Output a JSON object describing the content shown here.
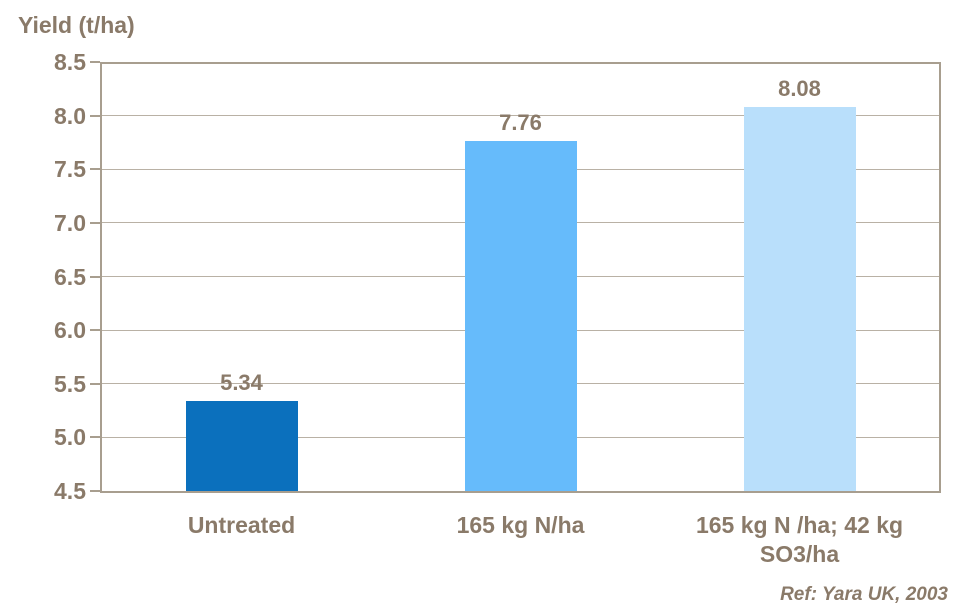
{
  "page_title": "Yield (t/ha)",
  "ref_note": "Ref: Yara UK, 2003",
  "colors": {
    "text": "#8a7a69",
    "axis_border": "#a89e8f",
    "gridline": "#b9b1a5",
    "background": "#ffffff"
  },
  "chart_data": {
    "type": "bar",
    "title": "Yield (t/ha)",
    "ylabel": "Yield (t/ha)",
    "xlabel": "",
    "categories": [
      "Untreated",
      "165 kg N/ha",
      "165 kg N /ha; 42 kg SO3/ha"
    ],
    "category_label_lines": [
      [
        "Untreated"
      ],
      [
        "165 kg N/ha"
      ],
      [
        "165 kg N /ha; 42 kg",
        "SO3/ha"
      ]
    ],
    "values": [
      5.34,
      7.76,
      8.08
    ],
    "data_labels": [
      "5.34",
      "7.76",
      "8.08"
    ],
    "bar_colors": [
      "#0b70bd",
      "#66bbfb",
      "#b9dffb"
    ],
    "ylim": [
      4.5,
      8.5
    ],
    "ytick_step": 0.5,
    "ytick_values": [
      8.5,
      8.0,
      7.5,
      7.0,
      6.5,
      6.0,
      5.5,
      5.0,
      4.5
    ],
    "ytick_labels": [
      "8.5",
      "8.0",
      "7.5",
      "7.0",
      "6.5",
      "6.0",
      "5.5",
      "5.0",
      "4.5"
    ],
    "grid": true,
    "legend": false,
    "annotation": "Ref: Yara UK, 2003"
  }
}
